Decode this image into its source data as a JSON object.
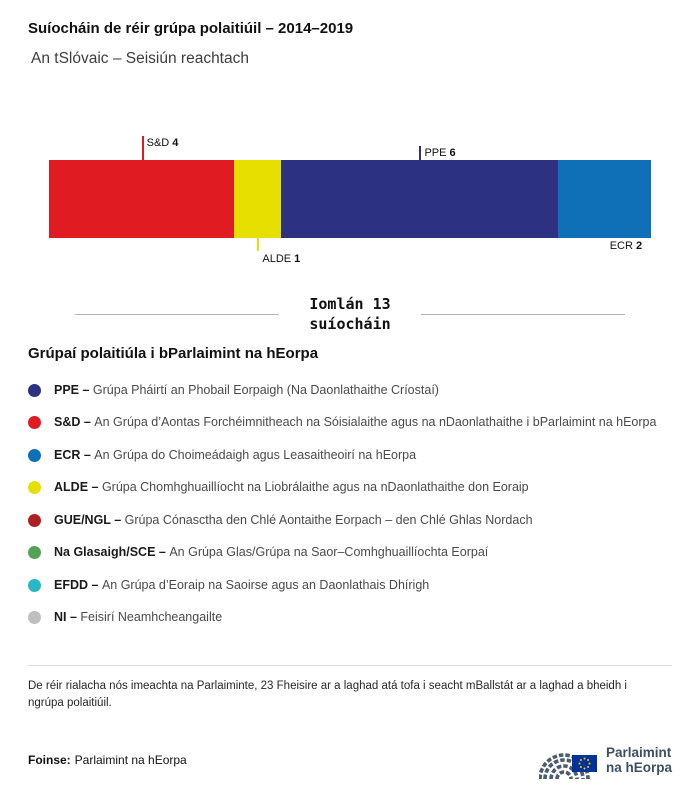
{
  "header": {
    "title": "Suíocháin de réir grúpa polaitiúil – 2014–2019",
    "subtitle": "An tSlóvaic – Seisiún reachtach"
  },
  "chart_data": {
    "type": "bar",
    "orientation": "horizontal-stacked",
    "title": "Suíocháin de réir grúpa polaitiúil – 2014–2019",
    "subtitle": "An tSlóvaic – Seisiún reachtach",
    "total_seats": 13,
    "total_label_line1": "Iomlán 13",
    "total_label_line2": "suíocháin",
    "segments": [
      {
        "group": "S&D",
        "seats": 4,
        "color": "#e01b22",
        "label_position": "top",
        "tick_length": 24
      },
      {
        "group": "ALDE",
        "seats": 1,
        "color": "#e6df00",
        "label_position": "bottom",
        "tick_length": 13
      },
      {
        "group": "PPE",
        "seats": 6,
        "color": "#2d3181",
        "label_position": "top",
        "tick_length": 14
      },
      {
        "group": "ECR",
        "seats": 2,
        "color": "#0f70b8",
        "label_position": "bottom",
        "tick_length": 0
      }
    ]
  },
  "legend": {
    "heading": "Grúpaí polaitiúla i bParlaimint na hEorpa",
    "items": [
      {
        "code": "PPE –",
        "color": "#2d3181",
        "description": "Grúpa Pháirtí an Phobail Eorpaigh (Na Daonlathaithe Críostaí)"
      },
      {
        "code": "S&D –",
        "color": "#e01b22",
        "description": "An Grúpa d’Aontas Forchéimnitheach na Sóisialaithe agus na nDaonlathaithe i bParlaimint na hEorpa"
      },
      {
        "code": "ECR –",
        "color": "#0f70b8",
        "description": "An Grúpa do Choimeádaigh agus Leasaitheoirí na hEorpa"
      },
      {
        "code": "ALDE –",
        "color": "#e6df00",
        "description": "Grúpa Chomhghuaillíocht na Liobrálaithe agus na nDaonlathaithe don Eoraip"
      },
      {
        "code": "GUE/NGL –",
        "color": "#ac2024",
        "description": "Grúpa Cónasctha den Chlé Aontaithe Eorpach – den Chlé Ghlas Nordach"
      },
      {
        "code": "Na Glasaigh/SCE –",
        "color": "#55a254",
        "description": "An Grúpa Glas/Grúpa na Saor–Comhghuaillíochta Eorpaí"
      },
      {
        "code": "EFDD –",
        "color": "#28b7c4",
        "description": "An Grúpa d’Eoraip na Saoirse agus an Daonlathais Dhírigh"
      },
      {
        "code": "NI –",
        "color": "#bfbfbf",
        "description": "Feisirí Neamhcheangailte"
      }
    ]
  },
  "footer": {
    "note": "De réir rialacha nós imeachta na Parlaiminte, 23 Fheisire ar a laghad atá tofa i seacht mBallstát ar a laghad a bheidh i ngrúpa polaitiúil.",
    "source_label": "Foinse:",
    "source_value": "Parlaimint na hEorpa",
    "logo_line1": "Parlaimint",
    "logo_line2": "na hEorpa"
  }
}
